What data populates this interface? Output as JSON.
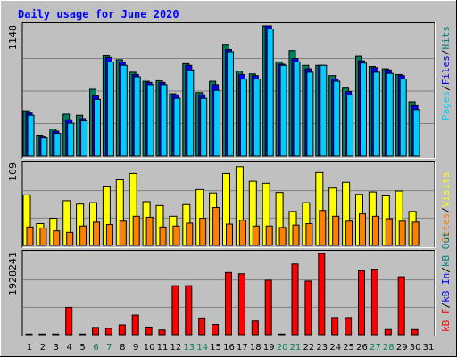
{
  "chart_data": [
    {
      "type": "bar",
      "title": "Daily usage for June 2020",
      "panel": "top",
      "ymax_label": "1148",
      "ylim": [
        0,
        1148
      ],
      "legend": [
        {
          "name": "Pages",
          "color": "#00ccff"
        },
        {
          "name": "/",
          "color": "#000000"
        },
        {
          "name": "Files",
          "color": "#0000ff"
        },
        {
          "name": "/",
          "color": "#000000"
        },
        {
          "name": "Hits",
          "color": "#008080"
        }
      ],
      "categories": [
        "1",
        "2",
        "3",
        "4",
        "5",
        "6",
        "7",
        "8",
        "9",
        "10",
        "11",
        "12",
        "13",
        "14",
        "15",
        "16",
        "17",
        "18",
        "19",
        "20",
        "21",
        "22",
        "23",
        "24",
        "25",
        "26",
        "27",
        "28",
        "29",
        "30",
        "31"
      ],
      "weekend_days": [
        "6",
        "7",
        "13",
        "14",
        "20",
        "21",
        "27",
        "28"
      ],
      "series": [
        {
          "name": "Hits",
          "color": "#008060",
          "values": [
            400,
            185,
            240,
            370,
            360,
            590,
            885,
            850,
            740,
            660,
            665,
            550,
            815,
            560,
            660,
            985,
            750,
            725,
            1148,
            830,
            930,
            800,
            800,
            710,
            600,
            880,
            790,
            770,
            720,
            480,
            0
          ]
        },
        {
          "name": "Files",
          "color": "#0000ff",
          "values": [
            380,
            175,
            220,
            320,
            330,
            530,
            870,
            830,
            720,
            650,
            650,
            540,
            800,
            540,
            630,
            940,
            720,
            710,
            1148,
            810,
            860,
            770,
            800,
            680,
            570,
            840,
            780,
            760,
            710,
            445,
            0
          ]
        },
        {
          "name": "Pages",
          "color": "#00ccff",
          "values": [
            360,
            160,
            200,
            290,
            310,
            500,
            830,
            800,
            700,
            630,
            630,
            510,
            760,
            510,
            580,
            920,
            680,
            680,
            1120,
            800,
            830,
            740,
            800,
            660,
            540,
            820,
            740,
            730,
            680,
            410,
            0
          ]
        }
      ]
    },
    {
      "type": "bar",
      "panel": "middle",
      "ymax_label": "169",
      "ylim": [
        0,
        169
      ],
      "legend": [
        {
          "name": "Visits",
          "color": "#ffff00"
        },
        {
          "name": "/",
          "color": "#000000"
        },
        {
          "name": "Sites",
          "color": "#ff8000"
        }
      ],
      "categories": [
        "1",
        "2",
        "3",
        "4",
        "5",
        "6",
        "7",
        "8",
        "9",
        "10",
        "11",
        "12",
        "13",
        "14",
        "15",
        "16",
        "17",
        "18",
        "19",
        "20",
        "21",
        "22",
        "23",
        "24",
        "25",
        "26",
        "27",
        "28",
        "29",
        "30",
        "31"
      ],
      "series": [
        {
          "name": "Visits",
          "color": "#ffff00",
          "values": [
            104,
            45,
            56,
            92,
            85,
            88,
            122,
            135,
            148,
            90,
            82,
            60,
            84,
            115,
            108,
            148,
            162,
            132,
            128,
            109,
            70,
            88,
            150,
            118,
            130,
            105,
            110,
            102,
            112,
            70,
            0
          ]
        },
        {
          "name": "Sites",
          "color": "#ff8000",
          "values": [
            38,
            36,
            30,
            27,
            40,
            48,
            43,
            50,
            60,
            58,
            38,
            40,
            46,
            56,
            78,
            44,
            52,
            40,
            40,
            37,
            42,
            45,
            72,
            60,
            50,
            65,
            60,
            55,
            50,
            48,
            0
          ]
        }
      ]
    },
    {
      "type": "bar",
      "panel": "bottom",
      "ymax_label": "1928241",
      "ylim": [
        0,
        1928241
      ],
      "legend": [
        {
          "name": "kB F",
          "color": "#ff0000"
        },
        {
          "name": "/",
          "color": "#000000"
        },
        {
          "name": "kB In",
          "color": "#0000ff"
        },
        {
          "name": "/",
          "color": "#000000"
        },
        {
          "name": "kB Out",
          "color": "#008080"
        }
      ],
      "categories": [
        "1",
        "2",
        "3",
        "4",
        "5",
        "6",
        "7",
        "8",
        "9",
        "10",
        "11",
        "12",
        "13",
        "14",
        "15",
        "16",
        "17",
        "18",
        "19",
        "20",
        "21",
        "22",
        "23",
        "24",
        "25",
        "26",
        "27",
        "28",
        "29",
        "30",
        "31"
      ],
      "series": [
        {
          "name": "kB F",
          "color": "#ff0000",
          "values": [
            15000,
            15000,
            15000,
            640000,
            15000,
            170000,
            150000,
            230000,
            460000,
            180000,
            110000,
            1150000,
            1150000,
            390000,
            240000,
            1460000,
            1430000,
            320000,
            1280000,
            15000,
            1660000,
            1260000,
            1900000,
            400000,
            400000,
            1500000,
            1540000,
            120000,
            1360000,
            120000,
            0
          ]
        }
      ]
    }
  ]
}
